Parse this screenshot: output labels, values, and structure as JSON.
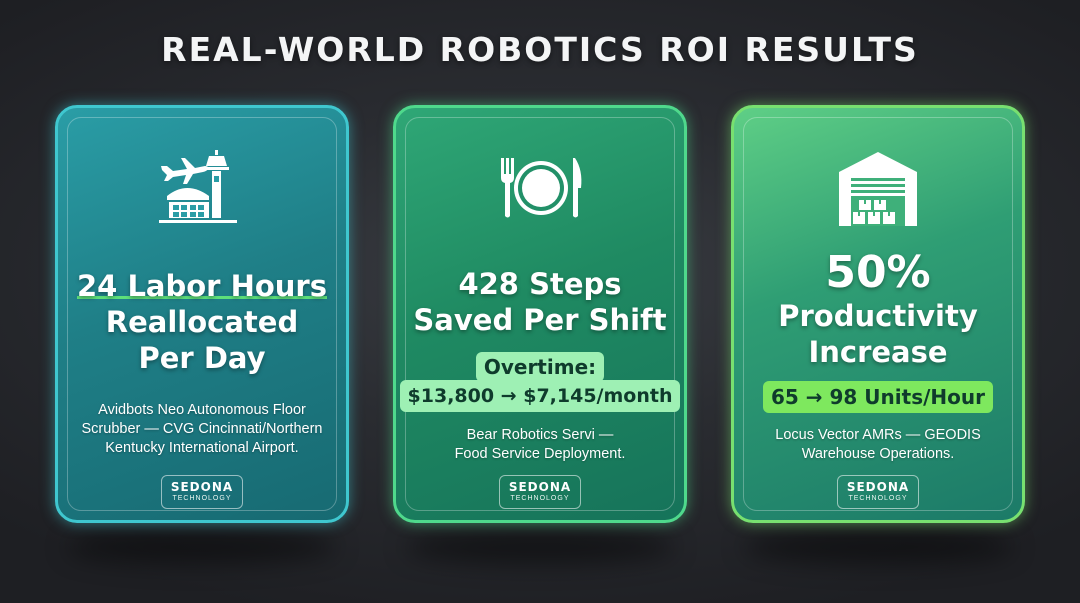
{
  "title": "REAL-WORLD ROBOTICS ROI RESULTS",
  "cards": [
    {
      "icon": "airport-icon",
      "headline": [
        "24 Labor Hours",
        "Reallocated",
        "Per Day"
      ],
      "detail": [
        "Avidbots Neo Autonomous Floor",
        "Scrubber — CVG Cincinnati/Northern",
        "Kentucky International Airport."
      ],
      "logo": {
        "name": "SEDONA",
        "sub": "TECHNOLOGY"
      }
    },
    {
      "icon": "plate-cutlery-icon",
      "headline": [
        "428 Steps",
        "Saved Per Shift"
      ],
      "badge_label": "Overtime:",
      "badge_value": "$13,800 → $7,145/month",
      "detail": [
        "Bear Robotics Servi —",
        "Food Service Deployment."
      ],
      "logo": {
        "name": "SEDONA",
        "sub": "TECHNOLOGY"
      }
    },
    {
      "icon": "warehouse-icon",
      "headline": [
        "50%",
        "Productivity",
        "Increase"
      ],
      "badge_value": "65 → 98 Units/Hour",
      "detail": [
        "Locus Vector AMRs — GEODIS",
        "Warehouse Operations."
      ],
      "logo": {
        "name": "SEDONA",
        "sub": "TECHNOLOGY"
      }
    }
  ],
  "colors": {
    "card1_accent": "#3fc7cf",
    "card2_accent": "#4fd98c",
    "card3_accent": "#78e070",
    "badge_green": "#9ef0b4",
    "badge_bright": "#7ee85e"
  }
}
